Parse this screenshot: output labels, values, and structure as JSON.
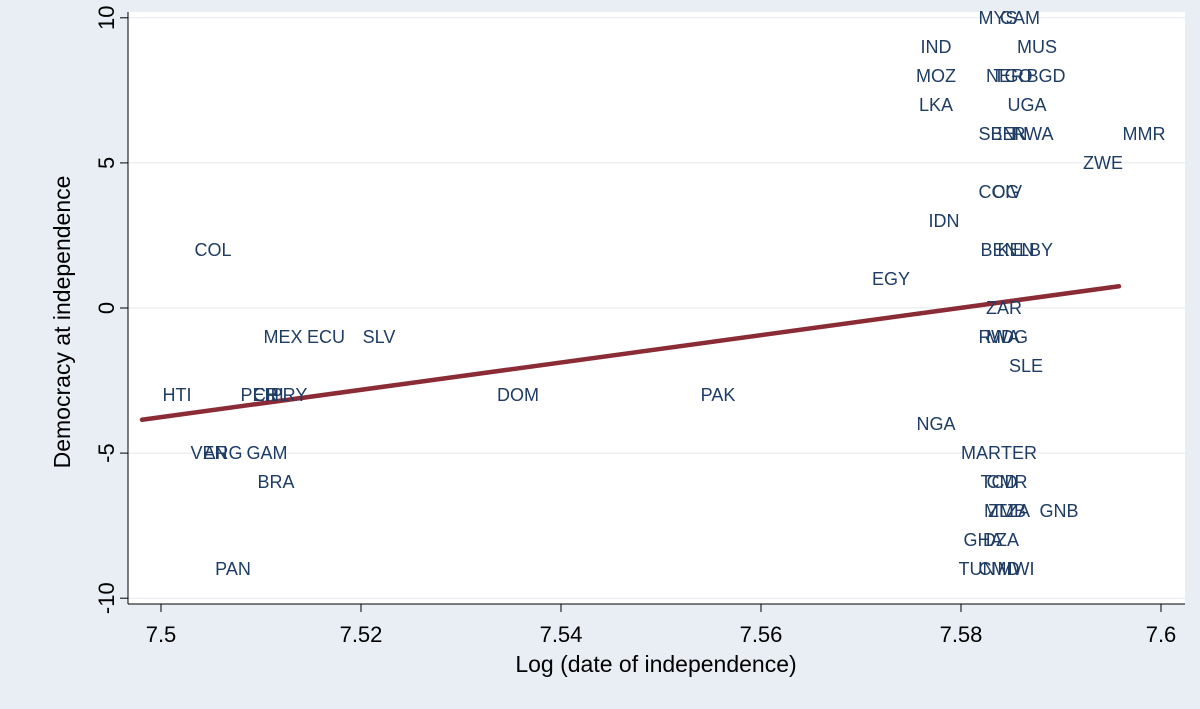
{
  "chart_data": {
    "type": "scatter",
    "xlabel": "Log (date of independence)",
    "ylabel": "Democracy at independence",
    "xlim": [
      7.4967,
      7.6024
    ],
    "ylim": [
      -10.2,
      10.2
    ],
    "x_ticks": [
      {
        "value": 7.5,
        "label": "7.5"
      },
      {
        "value": 7.52,
        "label": "7.52"
      },
      {
        "value": 7.54,
        "label": "7.54"
      },
      {
        "value": 7.56,
        "label": "7.56"
      },
      {
        "value": 7.58,
        "label": "7.58"
      },
      {
        "value": 7.6,
        "label": "7.6"
      }
    ],
    "y_ticks": [
      {
        "value": -10,
        "label": "-10"
      },
      {
        "value": -5,
        "label": "-5"
      },
      {
        "value": 0,
        "label": "0"
      },
      {
        "value": 5,
        "label": "5"
      },
      {
        "value": 10,
        "label": "10"
      }
    ],
    "grid": "horizontal",
    "marker": "country code label",
    "points": [
      {
        "label": "MYS",
        "x": 7.5837,
        "y": 10
      },
      {
        "label": "CAM",
        "x": 7.5859,
        "y": 10
      },
      {
        "label": "IND",
        "x": 7.5775,
        "y": 9
      },
      {
        "label": "MUS",
        "x": 7.5876,
        "y": 9
      },
      {
        "label": "MOZ",
        "x": 7.5775,
        "y": 8
      },
      {
        "label": "NER",
        "x": 7.5844,
        "y": 8
      },
      {
        "label": "TGO",
        "x": 7.5852,
        "y": 8
      },
      {
        "label": "BGD",
        "x": 7.5885,
        "y": 8
      },
      {
        "label": "LKA",
        "x": 7.5775,
        "y": 7
      },
      {
        "label": "UGA",
        "x": 7.5866,
        "y": 7
      },
      {
        "label": "SEN",
        "x": 7.5836,
        "y": 6
      },
      {
        "label": "BEN",
        "x": 7.5848,
        "y": 6
      },
      {
        "label": "RWA",
        "x": 7.5872,
        "y": 6
      },
      {
        "label": "MMR",
        "x": 7.5983,
        "y": 6
      },
      {
        "label": "ZWE",
        "x": 7.5942,
        "y": 5
      },
      {
        "label": "COG",
        "x": 7.5838,
        "y": 4
      },
      {
        "label": "CIV",
        "x": 7.5846,
        "y": 4
      },
      {
        "label": "IDN",
        "x": 7.5783,
        "y": 3
      },
      {
        "label": "COL",
        "x": 7.5052,
        "y": 2
      },
      {
        "label": "BEN",
        "x": 7.5838,
        "y": 2
      },
      {
        "label": "KEN",
        "x": 7.5855,
        "y": 2
      },
      {
        "label": "LBY",
        "x": 7.5875,
        "y": 2
      },
      {
        "label": "EGY",
        "x": 7.573,
        "y": 1
      },
      {
        "label": "ZAR",
        "x": 7.5843,
        "y": 0
      },
      {
        "label": "MEX",
        "x": 7.5122,
        "y": -1
      },
      {
        "label": "ECU",
        "x": 7.5165,
        "y": -1
      },
      {
        "label": "SLV",
        "x": 7.5218,
        "y": -1
      },
      {
        "label": "RWA",
        "x": 7.5838,
        "y": -1
      },
      {
        "label": "MDG",
        "x": 7.5846,
        "y": -1
      },
      {
        "label": "SLE",
        "x": 7.5865,
        "y": -2
      },
      {
        "label": "HTI",
        "x": 7.5016,
        "y": -3
      },
      {
        "label": "PER",
        "x": 7.5098,
        "y": -3
      },
      {
        "label": "CHL",
        "x": 7.511,
        "y": -3
      },
      {
        "label": "PRY",
        "x": 7.5128,
        "y": -3
      },
      {
        "label": "DOM",
        "x": 7.5357,
        "y": -3
      },
      {
        "label": "PAK",
        "x": 7.5557,
        "y": -3
      },
      {
        "label": "NGA",
        "x": 7.5775,
        "y": -4
      },
      {
        "label": "VEN",
        "x": 7.5048,
        "y": -5
      },
      {
        "label": "ARG",
        "x": 7.5062,
        "y": -5
      },
      {
        "label": "GAM",
        "x": 7.5106,
        "y": -5
      },
      {
        "label": "MAR",
        "x": 7.582,
        "y": -5
      },
      {
        "label": "TER",
        "x": 7.5858,
        "y": -5
      },
      {
        "label": "BRA",
        "x": 7.5115,
        "y": -6
      },
      {
        "label": "TCD",
        "x": 7.5838,
        "y": -6
      },
      {
        "label": "CMR",
        "x": 7.5846,
        "y": -6
      },
      {
        "label": "MLI",
        "x": 7.5838,
        "y": -7
      },
      {
        "label": "ZMB",
        "x": 7.5846,
        "y": -7
      },
      {
        "label": "TZA",
        "x": 7.5852,
        "y": -7
      },
      {
        "label": "GNB",
        "x": 7.5898,
        "y": -7
      },
      {
        "label": "GHA",
        "x": 7.5822,
        "y": -8
      },
      {
        "label": "DZA",
        "x": 7.584,
        "y": -8
      },
      {
        "label": "PAN",
        "x": 7.5072,
        "y": -9
      },
      {
        "label": "TUN",
        "x": 7.5816,
        "y": -9
      },
      {
        "label": "CMD",
        "x": 7.5838,
        "y": -9
      },
      {
        "label": "MWI",
        "x": 7.5855,
        "y": -9
      }
    ],
    "fit_line": {
      "x": [
        7.4981,
        7.5958
      ],
      "y": [
        -3.85,
        0.75
      ],
      "color": "#8b2b36"
    },
    "colors": {
      "points": "#1e3c64",
      "fit": "#8b2b36",
      "plot_bg": "#ffffff",
      "outer_bg": "#e9eef4",
      "grid": "#e4e8ee",
      "axis": "#000000"
    }
  }
}
